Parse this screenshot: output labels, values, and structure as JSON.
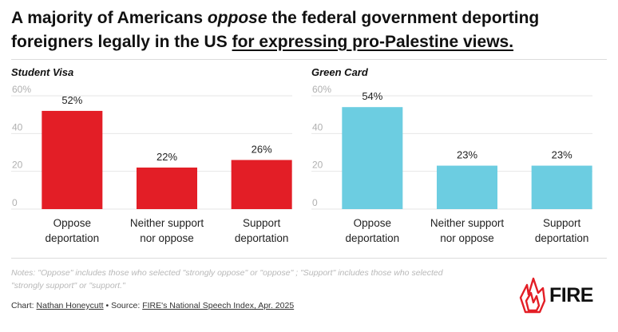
{
  "title": {
    "part1": "A majority of Americans ",
    "emph": "oppose",
    "part2": " the federal government deporting foreigners legally in the US ",
    "link": "for expressing pro-Palestine views."
  },
  "chart_data": [
    {
      "type": "bar",
      "title": "Student Visa",
      "categories": [
        [
          "Oppose",
          "deportation"
        ],
        [
          "Neither support",
          "nor oppose"
        ],
        [
          "Support",
          "deportation"
        ]
      ],
      "values": [
        52,
        22,
        26
      ],
      "value_labels": [
        "52%",
        "22%",
        "26%"
      ],
      "yticks": [
        "0",
        "20",
        "40",
        "60%"
      ],
      "ylim": [
        0,
        60
      ],
      "color": "#e31e26"
    },
    {
      "type": "bar",
      "title": "Green Card",
      "categories": [
        [
          "Oppose",
          "deportation"
        ],
        [
          "Neither support",
          "nor oppose"
        ],
        [
          "Support",
          "deportation"
        ]
      ],
      "values": [
        54,
        23,
        23
      ],
      "value_labels": [
        "54%",
        "23%",
        "23%"
      ],
      "yticks": [
        "0",
        "20",
        "40",
        "60%"
      ],
      "ylim": [
        0,
        60
      ],
      "color": "#6ccde1"
    }
  ],
  "notes": {
    "line1": "Notes: \"Oppose\" includes those who selected \"strongly oppose\" or \"oppose\" ; \"Support\" includes those who selected",
    "line2": "\"strongly support\" or \"support.\""
  },
  "credit": {
    "chart_prefix": "Chart: ",
    "author": "Nathan Honeycutt",
    "sep": " • Source: ",
    "source": "FIRE's National Speech Index, Apr. 2025"
  },
  "logo": {
    "text": "FIRE",
    "icon": "fire-flame-logo",
    "color": "#e31e26"
  }
}
